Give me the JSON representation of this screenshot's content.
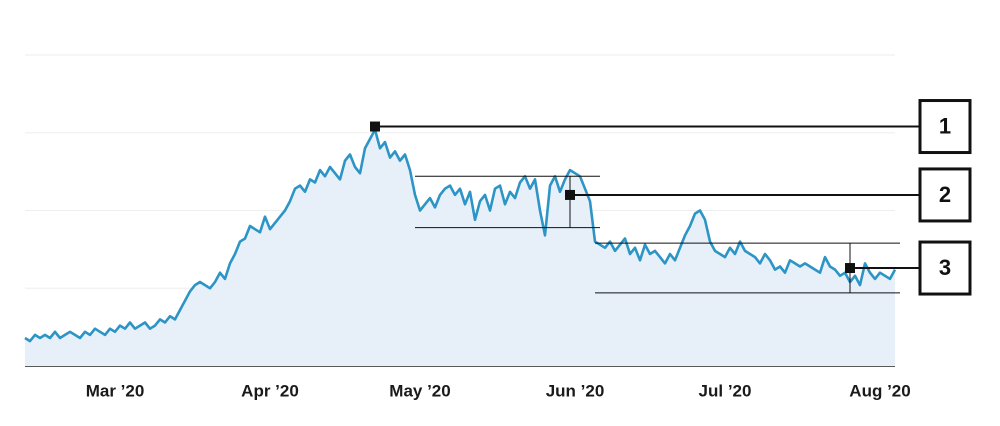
{
  "chart_data": {
    "type": "area",
    "xlim": [
      0,
      174
    ],
    "ylim": [
      0,
      100
    ],
    "yticks": [
      0,
      25,
      50,
      75,
      100
    ],
    "grid": true,
    "xticks": [
      {
        "value": 18,
        "label": "Mar ’20"
      },
      {
        "value": 49,
        "label": "Apr ’20"
      },
      {
        "value": 79,
        "label": "May ’20"
      },
      {
        "value": 110,
        "label": "Jun ’20"
      },
      {
        "value": 140,
        "label": "Jul ’20"
      },
      {
        "value": 171,
        "label": "Aug ’20"
      }
    ],
    "color": "#2d94c6",
    "fill_color": "#e7f0f9",
    "values": [
      9,
      8,
      10,
      9,
      10,
      9,
      11,
      9,
      10,
      11,
      10,
      9,
      11,
      10,
      12,
      11,
      10,
      12,
      11,
      13,
      12,
      14,
      12,
      13,
      14,
      12,
      13,
      15,
      14,
      16,
      15,
      18,
      21,
      24,
      26,
      27,
      26,
      25,
      27,
      30,
      28,
      33,
      36,
      40,
      41,
      45,
      44,
      43,
      48,
      44,
      46,
      48,
      50,
      53,
      57,
      58,
      56,
      60,
      59,
      63,
      61,
      64,
      62,
      60,
      66,
      68,
      64,
      62,
      70,
      73,
      76,
      70,
      72,
      67,
      69,
      66,
      68,
      63,
      55,
      50,
      52,
      54,
      51,
      55,
      57,
      58,
      55,
      57,
      52,
      56,
      47,
      53,
      55,
      50,
      57,
      58,
      52,
      56,
      54,
      59,
      61,
      57,
      60,
      50,
      42,
      58,
      61,
      56,
      60,
      63,
      62,
      61,
      57,
      53,
      40,
      39,
      38,
      40,
      37,
      39,
      41,
      36,
      38,
      34,
      39,
      36,
      37,
      35,
      33,
      36,
      34,
      38,
      42,
      45,
      49,
      50,
      47,
      40,
      37,
      36,
      35,
      38,
      36,
      40,
      37,
      36,
      35,
      33,
      36,
      34,
      31,
      32,
      30,
      34,
      33,
      32,
      33,
      32,
      31,
      30,
      35,
      32,
      31,
      29,
      30,
      27,
      29,
      26,
      33,
      30,
      28,
      30,
      29,
      28,
      31
    ],
    "annotations": [
      {
        "label": "1",
        "x": 70,
        "y": 77
      },
      {
        "label": "2",
        "x": 109,
        "y": 55,
        "x_range": [
          78,
          115
        ],
        "y_range": [
          44.5,
          61
        ]
      },
      {
        "label": "3",
        "x": 165,
        "y": 31.5,
        "x_range": [
          114,
          175
        ],
        "y_range": [
          23.5,
          39.5
        ]
      }
    ]
  }
}
